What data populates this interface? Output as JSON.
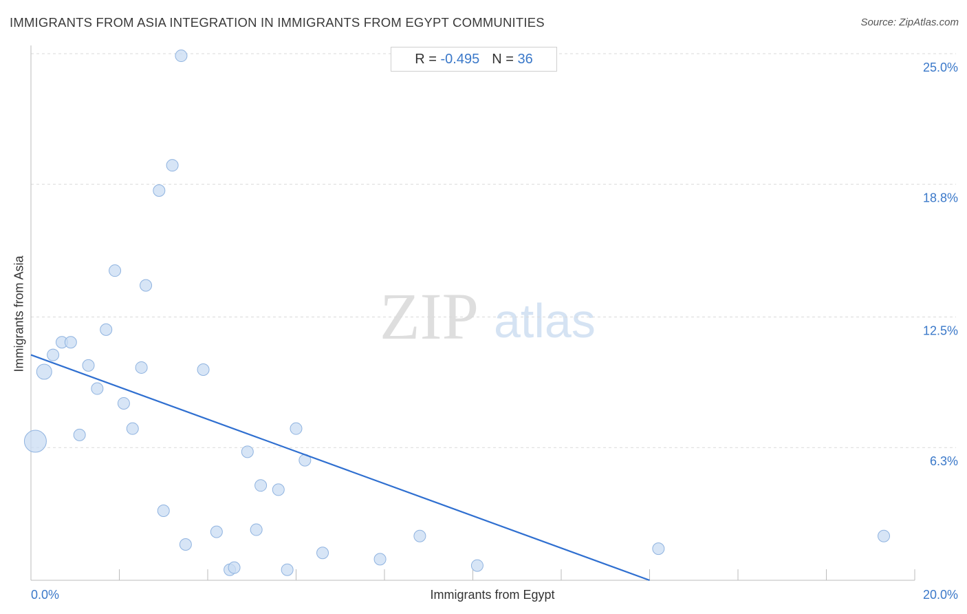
{
  "header": {
    "title": "IMMIGRANTS FROM ASIA INTEGRATION IN IMMIGRANTS FROM EGYPT COMMUNITIES",
    "source": "Source: ZipAtlas.com"
  },
  "stats": {
    "r_label": "R =",
    "r_value": "-0.495",
    "n_label": "N =",
    "n_value": "36"
  },
  "watermark": {
    "zip": "ZIP",
    "atlas": "atlas"
  },
  "colors": {
    "point_fill": "#c9dcf3",
    "point_stroke": "#8fb3e0",
    "trend_line": "#2f6fd0",
    "tick_label": "#3a78c9",
    "grid": "#d9d9d9"
  },
  "chart_data": {
    "type": "scatter",
    "title": "IMMIGRANTS FROM ASIA INTEGRATION IN IMMIGRANTS FROM EGYPT COMMUNITIES",
    "xlabel": "Immigrants from Egypt",
    "ylabel": "Immigrants from Asia",
    "xlim": [
      0,
      20
    ],
    "ylim": [
      0,
      25
    ],
    "x_ticks": [
      0,
      20
    ],
    "x_tick_labels": [
      "0.0%",
      "20.0%"
    ],
    "y_ticks": [
      6.3,
      12.5,
      18.8,
      25.0
    ],
    "y_tick_labels": [
      "6.3%",
      "12.5%",
      "18.8%",
      "25.0%"
    ],
    "grid": "horizontal dashed",
    "trend_line": {
      "x": [
        0,
        14.0
      ],
      "y": [
        10.7,
        0.0
      ]
    },
    "points": [
      {
        "x": 0.1,
        "y": 6.6,
        "size": "large"
      },
      {
        "x": 0.3,
        "y": 9.9,
        "size": "medium"
      },
      {
        "x": 0.5,
        "y": 10.7,
        "size": "small"
      },
      {
        "x": 0.7,
        "y": 11.3,
        "size": "small"
      },
      {
        "x": 0.9,
        "y": 11.3,
        "size": "small"
      },
      {
        "x": 1.1,
        "y": 6.9,
        "size": "small"
      },
      {
        "x": 1.3,
        "y": 10.2,
        "size": "small"
      },
      {
        "x": 1.5,
        "y": 9.1,
        "size": "small"
      },
      {
        "x": 1.7,
        "y": 11.9,
        "size": "small"
      },
      {
        "x": 1.9,
        "y": 14.7,
        "size": "small"
      },
      {
        "x": 2.1,
        "y": 8.4,
        "size": "small"
      },
      {
        "x": 2.3,
        "y": 7.2,
        "size": "small"
      },
      {
        "x": 2.5,
        "y": 10.1,
        "size": "small"
      },
      {
        "x": 2.6,
        "y": 14.0,
        "size": "small"
      },
      {
        "x": 2.9,
        "y": 18.5,
        "size": "small"
      },
      {
        "x": 3.0,
        "y": 3.3,
        "size": "small"
      },
      {
        "x": 3.2,
        "y": 19.7,
        "size": "small"
      },
      {
        "x": 3.4,
        "y": 24.9,
        "size": "small"
      },
      {
        "x": 3.5,
        "y": 1.7,
        "size": "small"
      },
      {
        "x": 3.9,
        "y": 10.0,
        "size": "small"
      },
      {
        "x": 4.2,
        "y": 2.3,
        "size": "small"
      },
      {
        "x": 4.5,
        "y": 0.5,
        "size": "small"
      },
      {
        "x": 4.6,
        "y": 0.6,
        "size": "small"
      },
      {
        "x": 4.9,
        "y": 6.1,
        "size": "small"
      },
      {
        "x": 5.1,
        "y": 2.4,
        "size": "small"
      },
      {
        "x": 5.2,
        "y": 4.5,
        "size": "small"
      },
      {
        "x": 5.6,
        "y": 4.3,
        "size": "small"
      },
      {
        "x": 5.8,
        "y": 0.5,
        "size": "small"
      },
      {
        "x": 6.0,
        "y": 7.2,
        "size": "small"
      },
      {
        "x": 6.2,
        "y": 5.7,
        "size": "small"
      },
      {
        "x": 6.6,
        "y": 1.3,
        "size": "small"
      },
      {
        "x": 7.9,
        "y": 1.0,
        "size": "small"
      },
      {
        "x": 8.8,
        "y": 2.1,
        "size": "small"
      },
      {
        "x": 10.1,
        "y": 0.7,
        "size": "small"
      },
      {
        "x": 14.2,
        "y": 1.5,
        "size": "small"
      },
      {
        "x": 19.3,
        "y": 2.1,
        "size": "small"
      }
    ]
  }
}
